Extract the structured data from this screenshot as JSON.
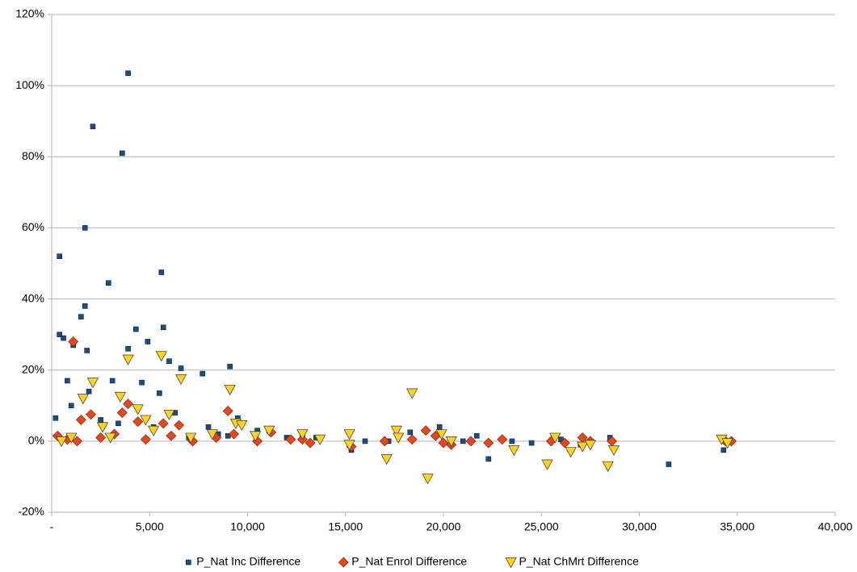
{
  "chart_data": {
    "type": "scatter",
    "series": [
      {
        "name": "P_Nat Inc Difference",
        "color": "#1c4e80",
        "marker": "square",
        "x": [
          400,
          400,
          600,
          1700,
          2100,
          3600,
          3900,
          2900,
          5600,
          5700,
          1700,
          1500,
          1100,
          1800,
          4300,
          3900,
          4900,
          6000,
          6600,
          7700,
          9100,
          800,
          3100,
          4600,
          5500,
          1900,
          9500,
          8000,
          10500,
          12000,
          15300,
          16000,
          17200,
          18300,
          19800,
          21000,
          21700,
          22300,
          23500,
          24500,
          25500,
          26000,
          27000,
          28500,
          31500,
          34300,
          34600,
          200,
          1000,
          2500,
          3400,
          5200,
          6300,
          7000,
          8500,
          9000,
          13500,
          12800
        ],
        "values": [
          52,
          30,
          29,
          60,
          88.5,
          81,
          103.5,
          44.5,
          47.5,
          32,
          38,
          35,
          27,
          25.5,
          31.5,
          26,
          28,
          22.5,
          20.5,
          19,
          21,
          17,
          17,
          16.5,
          13.5,
          14,
          6.5,
          4,
          3,
          1,
          -2.5,
          0,
          0,
          2.5,
          4,
          0,
          1.5,
          -5,
          0,
          -0.5,
          0,
          0.5,
          -1,
          1,
          -6.5,
          -2.5,
          0,
          6.5,
          10,
          6,
          5,
          4,
          8,
          1,
          2,
          1.5,
          1,
          1.5
        ]
      },
      {
        "name": "P_Nat Enrol Difference",
        "color": "#e8461b",
        "marker": "diamond",
        "x": [
          1100,
          3900,
          3600,
          4400,
          5700,
          6500,
          9000,
          2000,
          1500,
          300,
          800,
          1300,
          2500,
          3200,
          4800,
          6100,
          7200,
          8400,
          9300,
          10500,
          11200,
          12200,
          12800,
          13200,
          15300,
          17000,
          18400,
          19100,
          19600,
          20000,
          20400,
          21400,
          22300,
          23000,
          25500,
          26200,
          27100,
          27500,
          28600,
          34400,
          34700
        ],
        "values": [
          28,
          10.5,
          8,
          5.5,
          5,
          4.5,
          8.5,
          7.5,
          6,
          1.5,
          0.5,
          0,
          1,
          2,
          0.5,
          1.5,
          0,
          1,
          2,
          0,
          2.5,
          0.5,
          0.5,
          -0.5,
          -1.5,
          0,
          0.5,
          3,
          1.5,
          -0.5,
          -1,
          0,
          -0.5,
          0.5,
          0,
          -0.5,
          1,
          0,
          0,
          0,
          0
        ]
      },
      {
        "name": "P_Nat ChMrt Difference",
        "color": "#ffd320",
        "marker": "triangle-down",
        "x": [
          1600,
          2100,
          3500,
          3900,
          5600,
          6600,
          9100,
          4400,
          6000,
          9400,
          2600,
          4800,
          500,
          1000,
          3000,
          5200,
          7100,
          8200,
          9700,
          10400,
          11100,
          12800,
          13700,
          15200,
          15200,
          17100,
          17600,
          17700,
          18400,
          19200,
          19900,
          20400,
          23600,
          25300,
          25700,
          26500,
          27100,
          27500,
          28400,
          28700,
          34200,
          34500
        ],
        "values": [
          12,
          16.5,
          12.5,
          23,
          24,
          17.5,
          14.5,
          9,
          7.5,
          5,
          4,
          6,
          0,
          1,
          1,
          3,
          1,
          2,
          4.5,
          1.5,
          3,
          2,
          0.5,
          2,
          -1,
          -5,
          3,
          1,
          13.5,
          -10.5,
          2,
          0,
          -2.5,
          -6.5,
          1,
          -3,
          -1.5,
          -1,
          -7,
          -2.5,
          0.5,
          -0.5
        ]
      }
    ],
    "xlim": [
      0,
      40000
    ],
    "xticks": [
      {
        "value": 0,
        "label": "-"
      },
      {
        "value": 5000,
        "label": "5,000"
      },
      {
        "value": 10000,
        "label": "10,000"
      },
      {
        "value": 15000,
        "label": "15,000"
      },
      {
        "value": 20000,
        "label": "20,000"
      },
      {
        "value": 25000,
        "label": "25,000"
      },
      {
        "value": 30000,
        "label": "30,000"
      },
      {
        "value": 35000,
        "label": "35,000"
      },
      {
        "value": 40000,
        "label": "40,000"
      }
    ],
    "ylim": [
      -20,
      120
    ],
    "yticks": [
      {
        "value": -20,
        "label": "-20%"
      },
      {
        "value": 0,
        "label": "0%"
      },
      {
        "value": 20,
        "label": "20%"
      },
      {
        "value": 40,
        "label": "40%"
      },
      {
        "value": 60,
        "label": "60%"
      },
      {
        "value": 80,
        "label": "80%"
      },
      {
        "value": 100,
        "label": "100%"
      },
      {
        "value": 120,
        "label": "120%"
      }
    ],
    "grid": true,
    "legend": "bottom"
  }
}
